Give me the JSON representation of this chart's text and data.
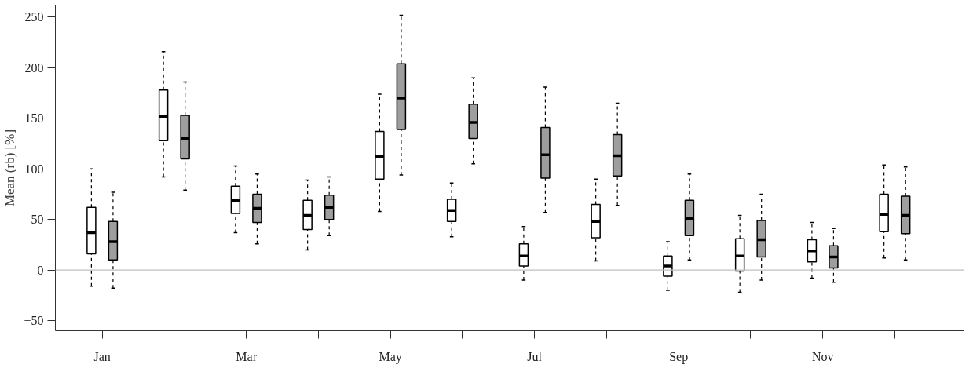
{
  "chart_data": {
    "type": "box",
    "ylabel": "Mean (rb) [%]",
    "categories": [
      "Jan",
      null,
      "Mar",
      null,
      "May",
      null,
      "Jul",
      null,
      "Sep",
      null,
      "Nov",
      null
    ],
    "ylim": [
      -60,
      262
    ],
    "yticks": [
      -50,
      0,
      50,
      100,
      150,
      200,
      250
    ],
    "ref_lines": [
      {
        "axis": "y",
        "value": 0,
        "color": "#c0c0c0"
      }
    ],
    "series": [
      {
        "color": "#ffffff",
        "boxes": [
          {
            "low": -16,
            "q1": 16,
            "median": 37,
            "q3": 62,
            "high": 100
          },
          {
            "low": 92,
            "q1": 128,
            "median": 152,
            "q3": 178,
            "high": 216
          },
          {
            "low": 37,
            "q1": 56,
            "median": 69,
            "q3": 83,
            "high": 103
          },
          {
            "low": 20,
            "q1": 40,
            "median": 54,
            "q3": 69,
            "high": 89
          },
          {
            "low": 58,
            "q1": 90,
            "median": 112,
            "q3": 137,
            "high": 174
          },
          {
            "low": 33,
            "q1": 48,
            "median": 59,
            "q3": 70,
            "high": 86
          },
          {
            "low": -10,
            "q1": 4,
            "median": 14,
            "q3": 26,
            "high": 43
          },
          {
            "low": 9,
            "q1": 32,
            "median": 48,
            "q3": 65,
            "high": 90
          },
          {
            "low": -20,
            "q1": -6,
            "median": 4,
            "q3": 14,
            "high": 28
          },
          {
            "low": -22,
            "q1": -1,
            "median": 14,
            "q3": 31,
            "high": 54
          },
          {
            "low": -8,
            "q1": 8,
            "median": 19,
            "q3": 30,
            "high": 47
          },
          {
            "low": 12,
            "q1": 38,
            "median": 55,
            "q3": 75,
            "high": 104
          }
        ]
      },
      {
        "color": "#9e9e9e",
        "boxes": [
          {
            "low": -18,
            "q1": 10,
            "median": 28,
            "q3": 48,
            "high": 77
          },
          {
            "low": 79,
            "q1": 110,
            "median": 130,
            "q3": 153,
            "high": 186
          },
          {
            "low": 26,
            "q1": 47,
            "median": 61,
            "q3": 75,
            "high": 95
          },
          {
            "low": 34,
            "q1": 50,
            "median": 62,
            "q3": 74,
            "high": 92
          },
          {
            "low": 94,
            "q1": 139,
            "median": 170,
            "q3": 204,
            "high": 252
          },
          {
            "low": 105,
            "q1": 130,
            "median": 146,
            "q3": 164,
            "high": 190
          },
          {
            "low": 57,
            "q1": 91,
            "median": 114,
            "q3": 141,
            "high": 181
          },
          {
            "low": 64,
            "q1": 93,
            "median": 113,
            "q3": 134,
            "high": 165
          },
          {
            "low": 10,
            "q1": 34,
            "median": 51,
            "q3": 69,
            "high": 95
          },
          {
            "low": -10,
            "q1": 13,
            "median": 30,
            "q3": 49,
            "high": 75
          },
          {
            "low": -12,
            "q1": 2,
            "median": 13,
            "q3": 24,
            "high": 41
          },
          {
            "low": 10,
            "q1": 36,
            "median": 54,
            "q3": 73,
            "high": 102
          }
        ]
      }
    ]
  }
}
